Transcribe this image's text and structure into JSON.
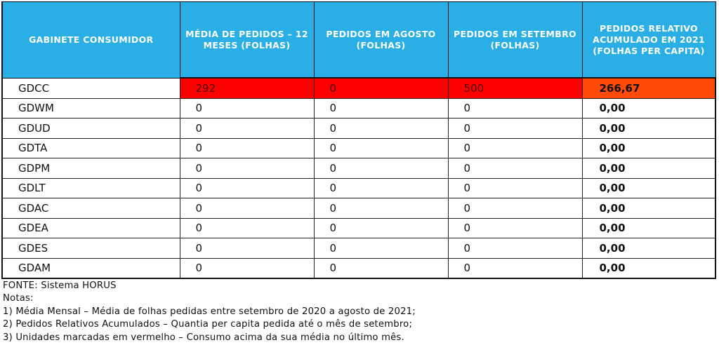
{
  "table": {
    "headers": [
      "GABINETE CONSUMIDOR",
      "MÉDIA DE PEDIDOS – 12 MESES (FOLHAS)",
      "PEDIDOS EM AGOSTO (FOLHAS)",
      "PEDIDOS EM SETEMBRO (FOLHAS)",
      "PEDIDOS RELATIVO ACUMULADO EM 2021 (FOLHAS PER CAPITA)"
    ],
    "rows": [
      {
        "gabinete": "GDCC",
        "media": "292",
        "agosto": "0",
        "setembro": "500",
        "relativo": "266,67",
        "highlight": true
      },
      {
        "gabinete": "GDWM",
        "media": "0",
        "agosto": "0",
        "setembro": "0",
        "relativo": "0,00",
        "highlight": false
      },
      {
        "gabinete": "GDUD",
        "media": "0",
        "agosto": "0",
        "setembro": "0",
        "relativo": "0,00",
        "highlight": false
      },
      {
        "gabinete": "GDTA",
        "media": "0",
        "agosto": "0",
        "setembro": "0",
        "relativo": "0,00",
        "highlight": false
      },
      {
        "gabinete": "GDPM",
        "media": "0",
        "agosto": "0",
        "setembro": "0",
        "relativo": "0,00",
        "highlight": false
      },
      {
        "gabinete": "GDLT",
        "media": "0",
        "agosto": "0",
        "setembro": "0",
        "relativo": "0,00",
        "highlight": false
      },
      {
        "gabinete": "GDAC",
        "media": "0",
        "agosto": "0",
        "setembro": "0",
        "relativo": "0,00",
        "highlight": false
      },
      {
        "gabinete": "GDEA",
        "media": "0",
        "agosto": "0",
        "setembro": "0",
        "relativo": "0,00",
        "highlight": false
      },
      {
        "gabinete": "GDES",
        "media": "0",
        "agosto": "0",
        "setembro": "0",
        "relativo": "0,00",
        "highlight": false
      },
      {
        "gabinete": "GDAM",
        "media": "0",
        "agosto": "0",
        "setembro": "0",
        "relativo": "0,00",
        "highlight": false
      }
    ]
  },
  "notes": {
    "source": "FONTE: Sistema HORUS",
    "title": "Notas:",
    "items": [
      "1) Média Mensal – Média de folhas pedidas entre setembro de 2020 a agosto de 2021;",
      "2) Pedidos Relativos Acumulados – Quantia per capita pedida até o mês de setembro;",
      "3) Unidades marcadas em vermelho – Consumo acima da sua média no último mês."
    ]
  },
  "colors": {
    "header_bg": "#29aee6",
    "highlight_red": "#ff0000",
    "highlight_orange": "#ff4a0a"
  }
}
